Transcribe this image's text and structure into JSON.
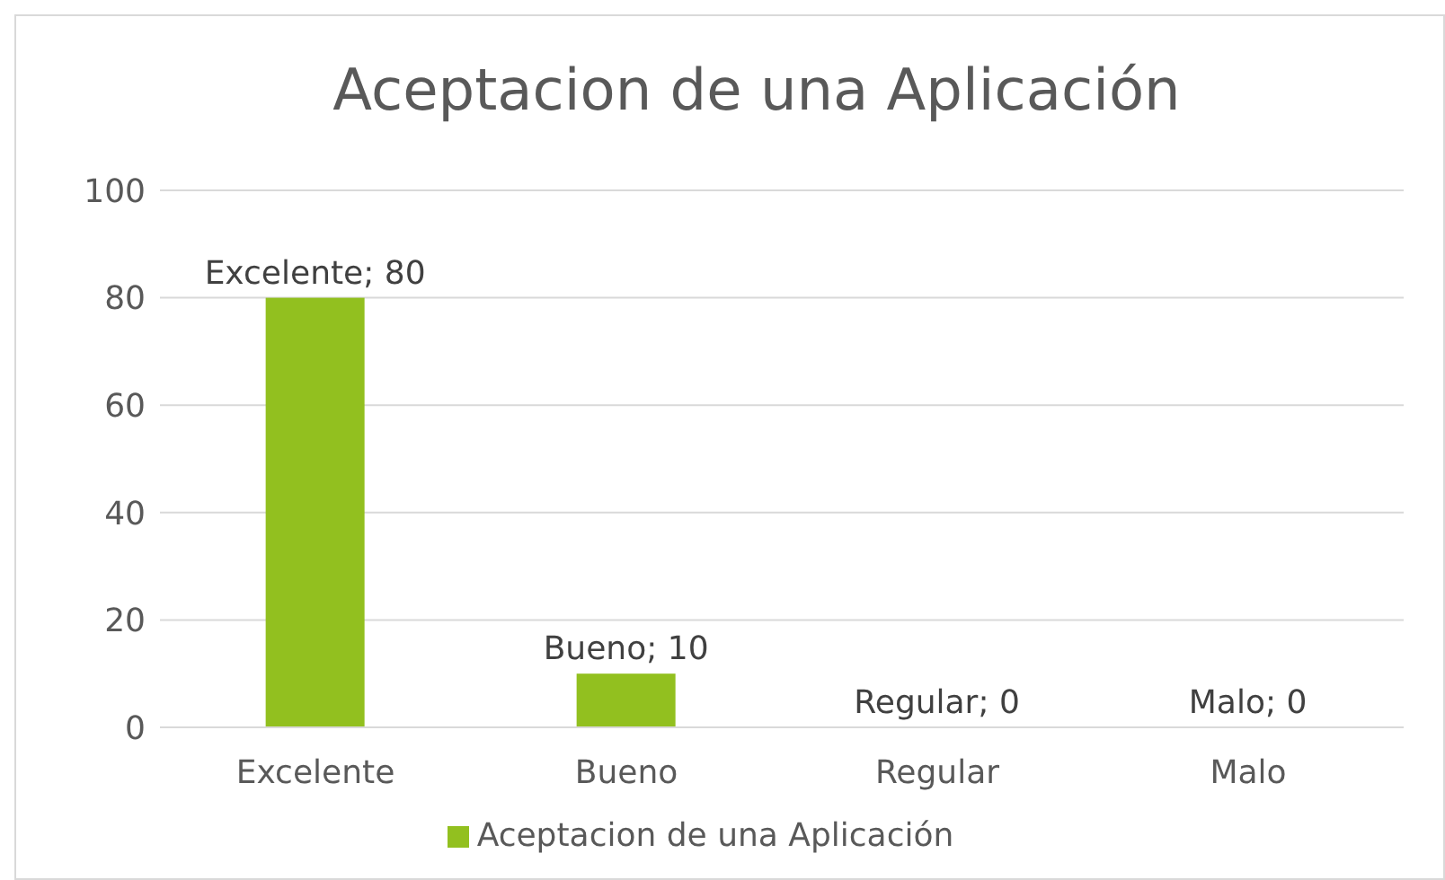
{
  "chart_data": {
    "type": "bar",
    "title": "Aceptacion de una Aplicación",
    "categories": [
      "Excelente",
      "Bueno",
      "Regular",
      "Malo"
    ],
    "series": [
      {
        "name": "Aceptacion de una Aplicación",
        "color": "#92c01f",
        "values": [
          80,
          10,
          0,
          0
        ],
        "value_labels": [
          "Excelente; 80",
          "Bueno; 10",
          "Regular; 0",
          "Malo; 0"
        ]
      }
    ],
    "ylim": [
      0,
      100
    ],
    "yticks": [
      0,
      20,
      40,
      60,
      80,
      100
    ],
    "grid": "y",
    "legend": "bottom"
  }
}
